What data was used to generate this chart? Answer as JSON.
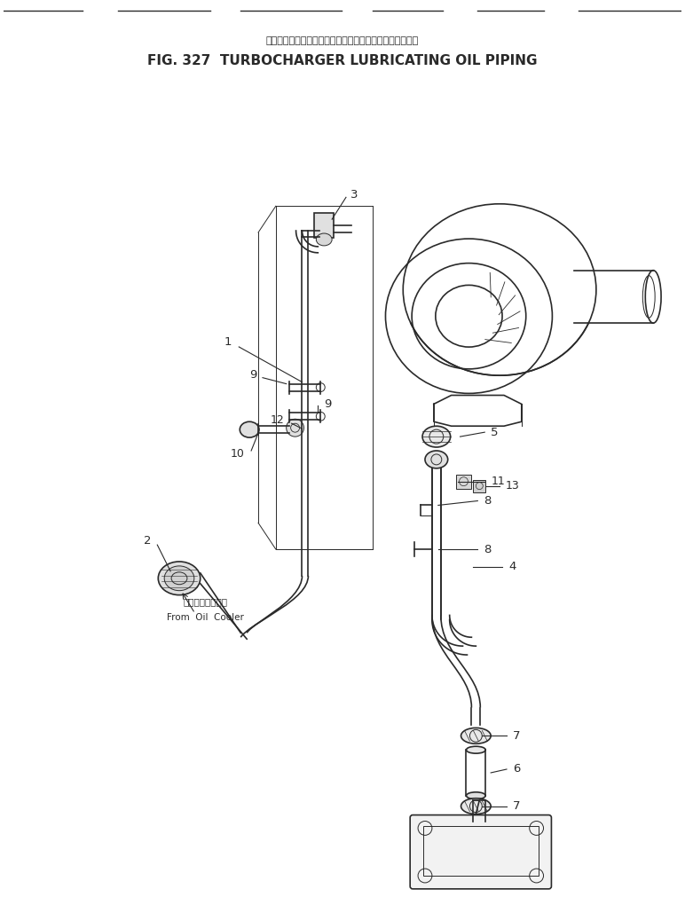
{
  "title_japanese": "ターボチャージャルーブリケーティングオイルパイピング",
  "title_english": "FIG. 327  TURBOCHARGER LUBRICATING OIL PIPING",
  "bg_color": "#ffffff",
  "line_color": "#2a2a2a",
  "fig_width": 7.72,
  "fig_height": 10.11,
  "annotation_jp": "オイルクーラから",
  "annotation_en": "From  Oil  Cooler"
}
